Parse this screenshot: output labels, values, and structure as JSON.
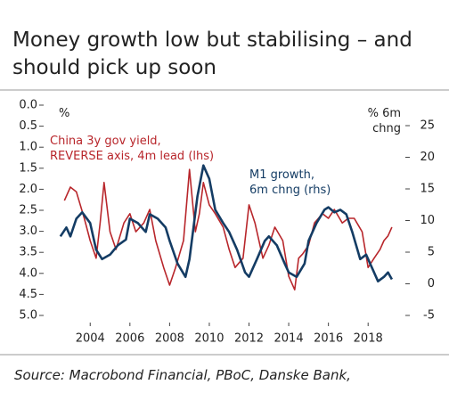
{
  "chart_data": {
    "type": "line",
    "title": [
      "Money growth low but stabilising – and",
      "should pick up soon"
    ],
    "source": "Source: Macrobond Financial, PBoC, Danske Bank,",
    "y_unit": "%",
    "y2_unit": [
      "% 6m",
      "chng"
    ],
    "xlim": [
      2001.7,
      2020.1
    ],
    "xticks": [
      2004,
      2006,
      2008,
      2010,
      2012,
      2014,
      2016,
      2018
    ],
    "ylim": [
      0,
      5
    ],
    "y_reverse": true,
    "yticks": [
      {
        "value": 0,
        "label": "0.0"
      },
      {
        "value": 0.5,
        "label": "0.5"
      },
      {
        "value": 1,
        "label": "1.0"
      },
      {
        "value": 1.5,
        "label": "1.5"
      },
      {
        "value": 2,
        "label": "2.0"
      },
      {
        "value": 2.5,
        "label": "2.5"
      },
      {
        "value": 3,
        "label": "3.0"
      },
      {
        "value": 3.5,
        "label": "3.5"
      },
      {
        "value": 4,
        "label": "4.0"
      },
      {
        "value": 4.5,
        "label": "4.5"
      },
      {
        "value": 5,
        "label": "5.0"
      }
    ],
    "y2lim": [
      -5,
      28.24
    ],
    "y2ticks": [
      -5,
      0,
      5,
      10,
      15,
      20,
      25
    ],
    "series": [
      {
        "name": [
          "China 3y gov yield,",
          "REVERSE axis, 4m lead (lhs)"
        ],
        "color": "#b8262b",
        "axis": "y",
        "x": [
          2002.7,
          2003,
          2003.3,
          2003.7,
          2004,
          2004.3,
          2004.5,
          2004.7,
          2005,
          2005.3,
          2005.7,
          2006,
          2006.3,
          2006.7,
          2007,
          2007.3,
          2007.7,
          2008,
          2008.3,
          2008.7,
          2009,
          2009.3,
          2009.5,
          2009.7,
          2010,
          2010.3,
          2010.7,
          2011,
          2011.3,
          2011.7,
          2012,
          2012.3,
          2012.7,
          2013,
          2013.3,
          2013.7,
          2014,
          2014.3,
          2014.5,
          2014.7,
          2015,
          2015.3,
          2015.7,
          2016,
          2016.3,
          2016.7,
          2017,
          2017.3,
          2017.7,
          2018,
          2018.3,
          2018.6,
          2018.8,
          2019,
          2019.2
        ],
        "values": [
          2.27,
          1.95,
          2.06,
          2.69,
          3.22,
          3.64,
          2.8,
          1.84,
          3.01,
          3.43,
          2.8,
          2.58,
          3.01,
          2.8,
          2.48,
          3.22,
          3.86,
          4.28,
          3.86,
          3.22,
          1.53,
          3.01,
          2.58,
          1.84,
          2.37,
          2.58,
          2.9,
          3.43,
          3.86,
          3.64,
          2.37,
          2.8,
          3.64,
          3.33,
          2.9,
          3.22,
          4.07,
          4.39,
          3.64,
          3.54,
          3.33,
          2.8,
          2.58,
          2.69,
          2.48,
          2.8,
          2.69,
          2.69,
          3.01,
          3.86,
          3.64,
          3.43,
          3.22,
          3.11,
          2.9
        ]
      },
      {
        "name": [
          "M1 growth,",
          "6m chng (rhs)"
        ],
        "color": "#143c64",
        "axis": "y2",
        "x": [
          2002.5,
          2002.8,
          2003,
          2003.3,
          2003.6,
          2004,
          2004.3,
          2004.6,
          2005,
          2005.4,
          2005.8,
          2006,
          2006.4,
          2006.8,
          2007,
          2007.4,
          2007.8,
          2008,
          2008.4,
          2008.8,
          2009,
          2009.4,
          2009.7,
          2010,
          2010.3,
          2010.7,
          2011,
          2011.4,
          2011.8,
          2012,
          2012.4,
          2012.8,
          2013,
          2013.4,
          2013.8,
          2014,
          2014.4,
          2014.8,
          2015,
          2015.4,
          2015.8,
          2016,
          2016.3,
          2016.6,
          2016.9,
          2017.2,
          2017.6,
          2017.9,
          2018.2,
          2018.5,
          2018.8,
          2019,
          2019.2
        ],
        "values": [
          7.5,
          8.9,
          7.5,
          10.3,
          11.3,
          9.6,
          5.4,
          3.9,
          4.6,
          6.1,
          7.0,
          10.3,
          9.6,
          8.2,
          11.0,
          10.3,
          8.9,
          6.8,
          3.2,
          1.1,
          3.9,
          13.8,
          18.7,
          16.6,
          11.7,
          9.6,
          8.2,
          5.4,
          1.8,
          1.1,
          3.9,
          6.8,
          7.5,
          6.1,
          3.2,
          1.8,
          1.1,
          3.2,
          6.8,
          9.6,
          11.7,
          12.1,
          11.3,
          11.7,
          11.0,
          8.2,
          3.9,
          4.6,
          2.5,
          0.4,
          1.1,
          1.8,
          0.7
        ]
      }
    ]
  }
}
